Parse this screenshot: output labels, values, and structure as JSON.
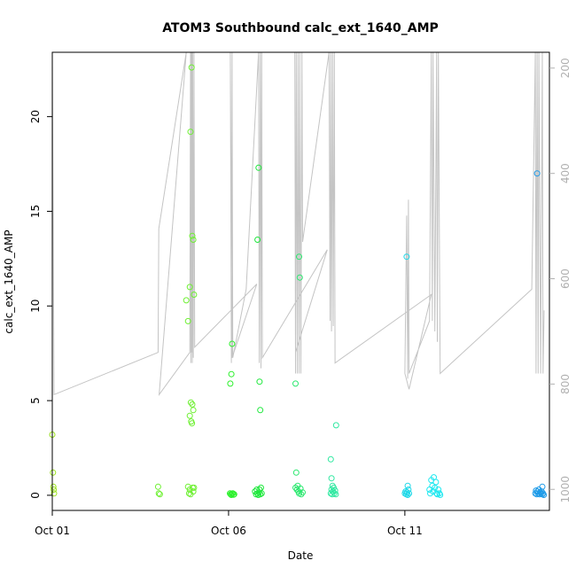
{
  "chart_data": {
    "type": "scatter",
    "title": "ATOM3 Southbound calc_ext_1640_AMP",
    "xlabel": "Date",
    "ylabel": "calc_ext_1640_AMP",
    "xlim": [
      0.0,
      14.1
    ],
    "ylim": [
      -0.8,
      23.4
    ],
    "x_ticks": [
      {
        "value": 0,
        "label": "Oct 01"
      },
      {
        "value": 5,
        "label": "Oct 06"
      },
      {
        "value": 10,
        "label": "Oct 11"
      }
    ],
    "y_ticks": [
      0,
      5,
      10,
      15,
      20
    ],
    "y2_axis": {
      "reversed": true,
      "ylim": [
        1040,
        170
      ],
      "ticks": [
        200,
        400,
        600,
        800,
        1000
      ],
      "color": "#b0b0b0"
    },
    "grid": false,
    "legend": "none",
    "series": [
      {
        "color": "#9be31e",
        "points": [
          [
            0.0,
            3.2
          ],
          [
            0.02,
            1.2
          ],
          [
            0.03,
            0.45
          ],
          [
            0.04,
            0.3
          ],
          [
            0.05,
            0.1
          ]
        ]
      },
      {
        "color": "#6ef032",
        "points": [
          [
            3.0,
            0.45
          ],
          [
            3.02,
            0.1
          ],
          [
            3.05,
            0.05
          ],
          [
            3.8,
            10.3
          ],
          [
            3.85,
            9.2
          ],
          [
            3.9,
            11.0
          ],
          [
            3.92,
            19.2
          ],
          [
            3.95,
            22.6
          ],
          [
            3.97,
            13.7
          ],
          [
            4.0,
            13.5
          ],
          [
            4.02,
            10.6
          ],
          [
            3.93,
            4.9
          ],
          [
            3.97,
            4.8
          ],
          [
            4.0,
            4.5
          ],
          [
            3.9,
            4.2
          ],
          [
            3.94,
            3.9
          ],
          [
            3.96,
            3.8
          ],
          [
            3.85,
            0.45
          ],
          [
            3.88,
            0.1
          ],
          [
            3.9,
            0.3
          ],
          [
            3.92,
            0.05
          ],
          [
            3.98,
            0.4
          ],
          [
            4.0,
            0.2
          ],
          [
            4.02,
            0.4
          ]
        ]
      },
      {
        "color": "#2cf02c",
        "points": [
          [
            5.05,
            5.9
          ],
          [
            5.08,
            6.4
          ],
          [
            5.1,
            8.0
          ],
          [
            5.04,
            0.1
          ],
          [
            5.06,
            0.05
          ],
          [
            5.08,
            0.02
          ],
          [
            5.1,
            0.08
          ],
          [
            5.12,
            0.1
          ],
          [
            5.14,
            0.03
          ],
          [
            5.16,
            0.05
          ]
        ]
      },
      {
        "color": "#1ee83c",
        "points": [
          [
            5.85,
            17.3
          ],
          [
            5.82,
            13.5
          ],
          [
            5.88,
            6.0
          ],
          [
            5.9,
            4.5
          ],
          [
            5.75,
            0.2
          ],
          [
            5.78,
            0.05
          ],
          [
            5.8,
            0.3
          ],
          [
            5.82,
            0.1
          ],
          [
            5.84,
            0.02
          ],
          [
            5.86,
            0.15
          ],
          [
            5.88,
            0.3
          ],
          [
            5.9,
            0.05
          ],
          [
            5.92,
            0.4
          ],
          [
            5.94,
            0.1
          ]
        ]
      },
      {
        "color": "#2ae86e",
        "points": [
          [
            7.0,
            12.6
          ],
          [
            7.02,
            11.5
          ],
          [
            6.9,
            5.9
          ],
          [
            6.92,
            1.2
          ],
          [
            6.9,
            0.4
          ],
          [
            6.94,
            0.3
          ],
          [
            6.96,
            0.5
          ],
          [
            6.98,
            0.2
          ],
          [
            7.0,
            0.1
          ],
          [
            7.04,
            0.35
          ],
          [
            7.06,
            0.05
          ],
          [
            7.1,
            0.15
          ]
        ]
      },
      {
        "color": "#2ee8a0",
        "points": [
          [
            7.9,
            1.9
          ],
          [
            7.92,
            0.9
          ],
          [
            7.95,
            0.5
          ],
          [
            8.05,
            3.7
          ],
          [
            7.9,
            0.1
          ],
          [
            7.92,
            0.3
          ],
          [
            7.94,
            0.05
          ],
          [
            7.96,
            0.2
          ],
          [
            7.98,
            0.4
          ],
          [
            8.0,
            0.1
          ],
          [
            8.02,
            0.25
          ],
          [
            8.04,
            0.05
          ]
        ]
      },
      {
        "color": "#1ed8e8",
        "points": [
          [
            10.05,
            12.6
          ],
          [
            10.08,
            0.5
          ],
          [
            10.0,
            0.1
          ],
          [
            10.02,
            0.2
          ],
          [
            10.04,
            0.05
          ],
          [
            10.06,
            0.15
          ],
          [
            10.08,
            0.02
          ],
          [
            10.1,
            0.3
          ],
          [
            10.12,
            0.1
          ]
        ]
      },
      {
        "color": "#1ee8f0",
        "points": [
          [
            10.7,
            0.3
          ],
          [
            10.72,
            0.1
          ],
          [
            10.75,
            0.8
          ],
          [
            10.78,
            0.5
          ],
          [
            10.8,
            0.2
          ],
          [
            10.82,
            0.95
          ],
          [
            10.85,
            0.4
          ],
          [
            10.88,
            0.7
          ],
          [
            10.9,
            0.1
          ],
          [
            10.92,
            0.05
          ],
          [
            10.95,
            0.3
          ],
          [
            10.98,
            0.1
          ],
          [
            11.0,
            0.02
          ]
        ]
      },
      {
        "color": "#1e9be8",
        "points": [
          [
            13.75,
            17.0
          ],
          [
            13.9,
            0.45
          ],
          [
            13.7,
            0.1
          ],
          [
            13.72,
            0.25
          ],
          [
            13.74,
            0.05
          ],
          [
            13.76,
            0.2
          ],
          [
            13.78,
            0.1
          ],
          [
            13.8,
            0.3
          ],
          [
            13.82,
            0.05
          ],
          [
            13.84,
            0.15
          ],
          [
            13.86,
            0.1
          ],
          [
            13.88,
            0.2
          ],
          [
            13.9,
            0.05
          ],
          [
            13.92,
            0.1
          ],
          [
            13.94,
            0.02
          ]
        ]
      }
    ],
    "depth_track": {
      "color": "#c4c4c4",
      "axis": "y2",
      "points": [
        [
          0.0,
          160
        ],
        [
          0.05,
          820
        ],
        [
          3.0,
          740
        ],
        [
          3.02,
          505
        ],
        [
          3.8,
          160
        ],
        [
          3.03,
          820
        ],
        [
          3.9,
          740
        ],
        [
          3.92,
          160
        ],
        [
          3.93,
          760
        ],
        [
          3.94,
          160
        ],
        [
          3.95,
          740
        ],
        [
          3.96,
          160
        ],
        [
          3.97,
          760
        ],
        [
          3.98,
          160
        ],
        [
          4.0,
          750
        ],
        [
          4.02,
          160
        ],
        [
          4.04,
          730
        ],
        [
          5.8,
          610
        ],
        [
          5.1,
          750
        ],
        [
          5.05,
          160
        ],
        [
          5.08,
          760
        ],
        [
          5.1,
          160
        ],
        [
          5.12,
          750
        ],
        [
          5.5,
          620
        ],
        [
          5.85,
          160
        ],
        [
          5.87,
          760
        ],
        [
          5.9,
          160
        ],
        [
          5.92,
          770
        ],
        [
          5.94,
          160
        ],
        [
          5.96,
          750
        ],
        [
          7.8,
          545
        ],
        [
          6.9,
          740
        ],
        [
          6.88,
          160
        ],
        [
          6.9,
          780
        ],
        [
          6.92,
          160
        ],
        [
          6.95,
          780
        ],
        [
          6.97,
          160
        ],
        [
          7.0,
          780
        ],
        [
          7.02,
          160
        ],
        [
          7.05,
          780
        ],
        [
          7.08,
          160
        ],
        [
          7.1,
          530
        ],
        [
          7.85,
          160
        ],
        [
          7.88,
          680
        ],
        [
          7.9,
          160
        ],
        [
          7.92,
          700
        ],
        [
          7.95,
          160
        ],
        [
          7.97,
          690
        ],
        [
          8.0,
          160
        ],
        [
          8.02,
          760
        ],
        [
          10.75,
          630
        ],
        [
          10.12,
          810
        ],
        [
          10.0,
          780
        ],
        [
          10.05,
          480
        ],
        [
          10.08,
          790
        ],
        [
          10.1,
          450
        ],
        [
          10.12,
          780
        ],
        [
          10.7,
          680
        ],
        [
          10.75,
          160
        ],
        [
          10.78,
          680
        ],
        [
          10.8,
          160
        ],
        [
          10.85,
          700
        ],
        [
          10.9,
          160
        ],
        [
          10.92,
          720
        ],
        [
          10.95,
          160
        ],
        [
          11.0,
          780
        ],
        [
          13.6,
          620
        ],
        [
          13.7,
          160
        ],
        [
          13.72,
          780
        ],
        [
          13.75,
          160
        ],
        [
          13.78,
          780
        ],
        [
          13.8,
          160
        ],
        [
          13.85,
          780
        ],
        [
          13.9,
          160
        ],
        [
          13.92,
          780
        ],
        [
          13.95,
          660
        ]
      ]
    }
  }
}
